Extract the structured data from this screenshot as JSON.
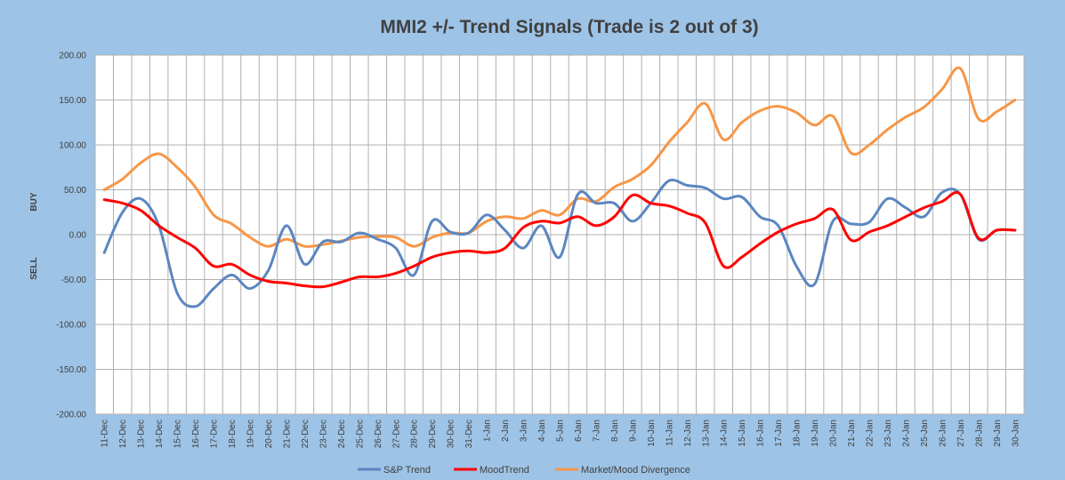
{
  "chart_data": {
    "type": "line",
    "title": "MMI2 +/- Trend Signals (Trade is 2 out of 3)",
    "ylabel_top": "BUY",
    "ylabel_bottom": "SELL",
    "ylim": [
      -200,
      200
    ],
    "y_ticks": [
      "-200.00",
      "-150.00",
      "-100.00",
      "-50.00",
      "0.00",
      "50.00",
      "100.00",
      "150.00",
      "200.00"
    ],
    "grid": true,
    "legend_position": "bottom",
    "categories": [
      "11-Dec",
      "12-Dec",
      "13-Dec",
      "14-Dec",
      "15-Dec",
      "16-Dec",
      "17-Dec",
      "18-Dec",
      "19-Dec",
      "20-Dec",
      "21-Dec",
      "22-Dec",
      "23-Dec",
      "24-Dec",
      "25-Dec",
      "26-Dec",
      "27-Dec",
      "28-Dec",
      "29-Dec",
      "30-Dec",
      "31-Dec",
      "1-Jan",
      "2-Jan",
      "3-Jan",
      "4-Jan",
      "5-Jan",
      "6-Jan",
      "7-Jan",
      "8-Jan",
      "9-Jan",
      "10-Jan",
      "11-Jan",
      "12-Jan",
      "13-Jan",
      "14-Jan",
      "15-Jan",
      "16-Jan",
      "17-Jan",
      "18-Jan",
      "19-Jan",
      "20-Jan",
      "21-Jan",
      "22-Jan",
      "23-Jan",
      "24-Jan",
      "25-Jan",
      "26-Jan",
      "27-Jan",
      "28-Jan",
      "29-Jan",
      "30-Jan"
    ],
    "series": [
      {
        "name": "S&P Trend",
        "color": "#5b86c0",
        "values": [
          -20,
          25,
          40,
          10,
          -65,
          -80,
          -60,
          -45,
          -60,
          -40,
          10,
          -33,
          -8,
          -8,
          2,
          -5,
          -15,
          -45,
          15,
          3,
          2,
          22,
          5,
          -15,
          10,
          -25,
          45,
          35,
          35,
          15,
          35,
          60,
          55,
          52,
          40,
          42,
          20,
          10,
          -35,
          -55,
          15,
          12,
          14,
          40,
          30,
          20,
          47,
          45,
          -5,
          5,
          5
        ]
      },
      {
        "name": "MoodTrend",
        "color": "#ff0000",
        "values": [
          39,
          35,
          27,
          10,
          -3,
          -15,
          -35,
          -33,
          -45,
          -52,
          -54,
          -57,
          -58,
          -53,
          -47,
          -47,
          -43,
          -35,
          -25,
          -20,
          -18,
          -20,
          -15,
          8,
          15,
          13,
          20,
          10,
          20,
          44,
          35,
          32,
          24,
          13,
          -35,
          -25,
          -10,
          3,
          12,
          18,
          28,
          -6,
          3,
          10,
          20,
          30,
          37,
          45,
          -4,
          5,
          5
        ]
      },
      {
        "name": "Market/Mood Divergence",
        "color": "#f79646",
        "values": [
          50,
          62,
          80,
          90,
          75,
          53,
          22,
          12,
          -3,
          -13,
          -5,
          -13,
          -11,
          -7,
          -3,
          -2,
          -3,
          -13,
          -3,
          2,
          2,
          15,
          20,
          18,
          27,
          22,
          40,
          37,
          53,
          62,
          77,
          103,
          125,
          146,
          106,
          125,
          138,
          143,
          136,
          122,
          132,
          91,
          100,
          117,
          131,
          142,
          162,
          185,
          129,
          137,
          150
        ]
      }
    ]
  }
}
